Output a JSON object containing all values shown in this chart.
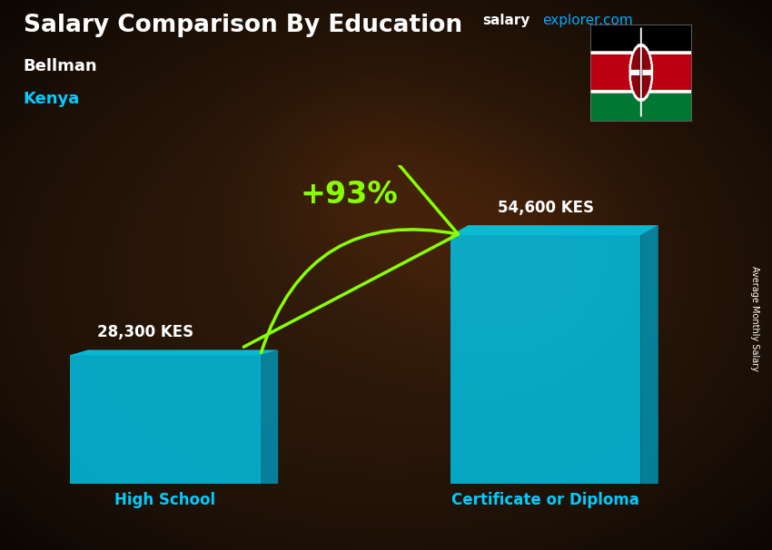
{
  "title_main": "Salary Comparison By Education",
  "subtitle1": "Bellman",
  "subtitle2": "Kenya",
  "site_text_salary": "salary",
  "site_text_explorer": "explorer.com",
  "ylabel_rotated": "Average Monthly Salary",
  "categories": [
    "High School",
    "Certificate or Diploma"
  ],
  "values": [
    28300,
    54600
  ],
  "value_labels": [
    "28,300 KES",
    "54,600 KES"
  ],
  "bar_face_color": "#00c8ee",
  "bar_side_color": "#0099bb",
  "bar_top_color": "#00ddff",
  "bar_alpha": 0.82,
  "pct_label": "+93%",
  "pct_color": "#88ff00",
  "arrow_color": "#88ff00",
  "background_color": "#2a1505",
  "title_color": "#ffffff",
  "subtitle1_color": "#ffffff",
  "subtitle2_color": "#00ccff",
  "cat_label_color": "#00ccff",
  "value_label_color": "#ffffff",
  "site_salary_color": "#ffffff",
  "site_explorer_color": "#00aaff",
  "ylabel_color": "#ffffff",
  "ylim": [
    0,
    70000
  ],
  "bar_positions": [
    1.0,
    2.5
  ],
  "bar_width": 0.75,
  "flag_colors": {
    "black": [
      0,
      0,
      0
    ],
    "red": [
      187,
      0,
      17
    ],
    "green": [
      0,
      119,
      51
    ],
    "white": [
      255,
      255,
      255
    ]
  }
}
